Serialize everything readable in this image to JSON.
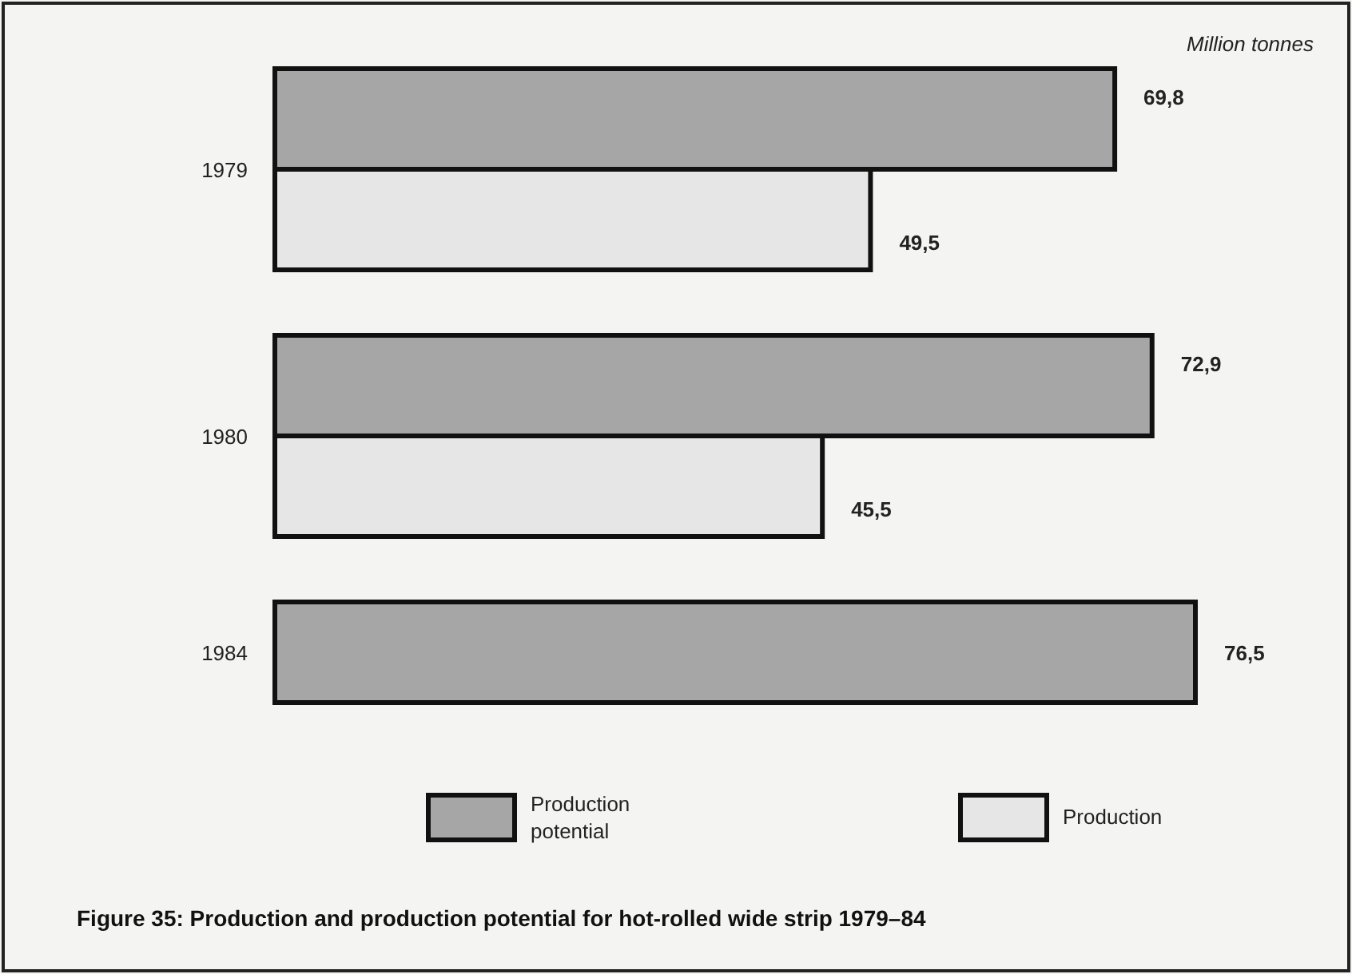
{
  "chart_data": {
    "type": "bar",
    "orientation": "horizontal",
    "title": "Figure 35:  Production and production potential for hot-rolled wide strip 1979–84",
    "annotations": [
      "Million tonnes"
    ],
    "categories": [
      "1979",
      "1980",
      "1984"
    ],
    "legend": "bottom",
    "series": [
      {
        "name": "Production potential",
        "color": "#a6a6a6",
        "values": [
          69.8,
          72.9,
          76.5
        ],
        "value_labels": [
          "69,8",
          "72,9",
          "76,5"
        ]
      },
      {
        "name": "Production",
        "color": "#e6e6e6",
        "values": [
          49.5,
          45.5,
          null
        ],
        "value_labels": [
          "49,5",
          "45,5",
          null
        ]
      }
    ]
  }
}
